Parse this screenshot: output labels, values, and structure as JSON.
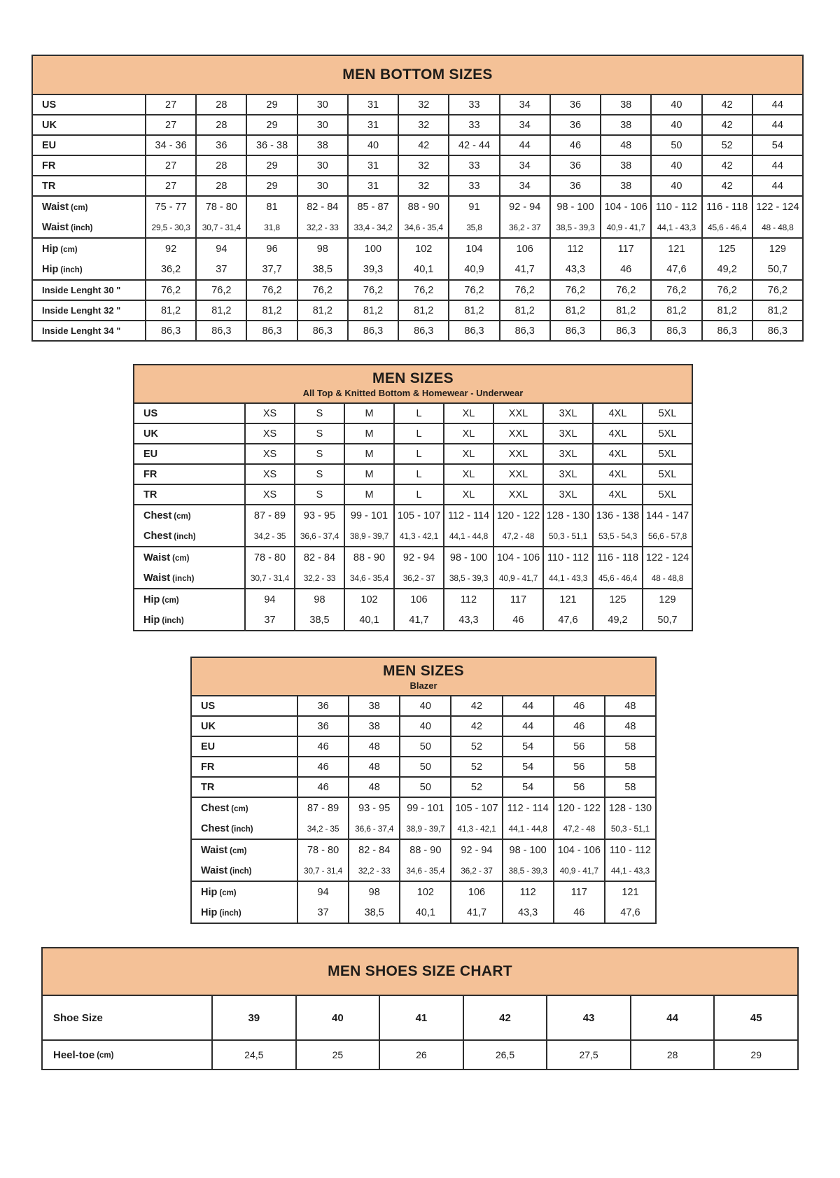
{
  "colors": {
    "header_bg": "#F4C197",
    "border": "#2e2e2e",
    "text": "#1d1d1d",
    "page_bg": "#ffffff"
  },
  "tables": [
    {
      "title": "MEN BOTTOM SIZES",
      "subtitle": "",
      "row_groups": [
        [
          {
            "label": "US",
            "unit": "",
            "small": false,
            "values": [
              "27",
              "28",
              "29",
              "30",
              "31",
              "32",
              "33",
              "34",
              "36",
              "38",
              "40",
              "42",
              "44"
            ]
          }
        ],
        [
          {
            "label": "UK",
            "unit": "",
            "small": false,
            "values": [
              "27",
              "28",
              "29",
              "30",
              "31",
              "32",
              "33",
              "34",
              "36",
              "38",
              "40",
              "42",
              "44"
            ]
          }
        ],
        [
          {
            "label": "EU",
            "unit": "",
            "small": false,
            "values": [
              "34 - 36",
              "36",
              "36 - 38",
              "38",
              "40",
              "42",
              "42 - 44",
              "44",
              "46",
              "48",
              "50",
              "52",
              "54"
            ]
          }
        ],
        [
          {
            "label": "FR",
            "unit": "",
            "small": false,
            "values": [
              "27",
              "28",
              "29",
              "30",
              "31",
              "32",
              "33",
              "34",
              "36",
              "38",
              "40",
              "42",
              "44"
            ]
          }
        ],
        [
          {
            "label": "TR",
            "unit": "",
            "small": false,
            "values": [
              "27",
              "28",
              "29",
              "30",
              "31",
              "32",
              "33",
              "34",
              "36",
              "38",
              "40",
              "42",
              "44"
            ]
          }
        ],
        [
          {
            "label": "Waist",
            "unit": "(cm)",
            "small": false,
            "values": [
              "75 - 77",
              "78 - 80",
              "81",
              "82 - 84",
              "85 - 87",
              "88 - 90",
              "91",
              "92 - 94",
              "98 - 100",
              "104 - 106",
              "110 - 112",
              "116 - 118",
              "122 - 124"
            ]
          },
          {
            "label": "Waist",
            "unit": "(inch)",
            "small": true,
            "values": [
              "29,5 - 30,3",
              "30,7 - 31,4",
              "31,8",
              "32,2 - 33",
              "33,4 - 34,2",
              "34,6 - 35,4",
              "35,8",
              "36,2 - 37",
              "38,5 - 39,3",
              "40,9 - 41,7",
              "44,1 - 43,3",
              "45,6 - 46,4",
              "48 - 48,8"
            ]
          }
        ],
        [
          {
            "label": "Hip",
            "unit": "(cm)",
            "small": false,
            "values": [
              "92",
              "94",
              "96",
              "98",
              "100",
              "102",
              "104",
              "106",
              "112",
              "117",
              "121",
              "125",
              "129"
            ]
          },
          {
            "label": "Hip",
            "unit": "(inch)",
            "small": false,
            "values": [
              "36,2",
              "37",
              "37,7",
              "38,5",
              "39,3",
              "40,1",
              "40,9",
              "41,7",
              "43,3",
              "46",
              "47,6",
              "49,2",
              "50,7"
            ]
          }
        ],
        [
          {
            "label": "Inside Lenght 30 \"",
            "unit": "",
            "small": false,
            "values": [
              "76,2",
              "76,2",
              "76,2",
              "76,2",
              "76,2",
              "76,2",
              "76,2",
              "76,2",
              "76,2",
              "76,2",
              "76,2",
              "76,2",
              "76,2"
            ]
          }
        ],
        [
          {
            "label": "Inside Lenght 32 \"",
            "unit": "",
            "small": false,
            "values": [
              "81,2",
              "81,2",
              "81,2",
              "81,2",
              "81,2",
              "81,2",
              "81,2",
              "81,2",
              "81,2",
              "81,2",
              "81,2",
              "81,2",
              "81,2"
            ]
          }
        ],
        [
          {
            "label": "Inside Lenght 34 \"",
            "unit": "",
            "small": false,
            "values": [
              "86,3",
              "86,3",
              "86,3",
              "86,3",
              "86,3",
              "86,3",
              "86,3",
              "86,3",
              "86,3",
              "86,3",
              "86,3",
              "86,3",
              "86,3"
            ]
          }
        ]
      ]
    },
    {
      "title": "MEN SIZES",
      "subtitle": "All Top & Knitted Bottom & Homewear - Underwear",
      "row_groups": [
        [
          {
            "label": "US",
            "unit": "",
            "small": false,
            "values": [
              "XS",
              "S",
              "M",
              "L",
              "XL",
              "XXL",
              "3XL",
              "4XL",
              "5XL"
            ]
          }
        ],
        [
          {
            "label": "UK",
            "unit": "",
            "small": false,
            "values": [
              "XS",
              "S",
              "M",
              "L",
              "XL",
              "XXL",
              "3XL",
              "4XL",
              "5XL"
            ]
          }
        ],
        [
          {
            "label": "EU",
            "unit": "",
            "small": false,
            "values": [
              "XS",
              "S",
              "M",
              "L",
              "XL",
              "XXL",
              "3XL",
              "4XL",
              "5XL"
            ]
          }
        ],
        [
          {
            "label": "FR",
            "unit": "",
            "small": false,
            "values": [
              "XS",
              "S",
              "M",
              "L",
              "XL",
              "XXL",
              "3XL",
              "4XL",
              "5XL"
            ]
          }
        ],
        [
          {
            "label": "TR",
            "unit": "",
            "small": false,
            "values": [
              "XS",
              "S",
              "M",
              "L",
              "XL",
              "XXL",
              "3XL",
              "4XL",
              "5XL"
            ]
          }
        ],
        [
          {
            "label": "Chest",
            "unit": "(cm)",
            "small": false,
            "values": [
              "87 - 89",
              "93 - 95",
              "99 - 101",
              "105 - 107",
              "112 - 114",
              "120 - 122",
              "128 - 130",
              "136 - 138",
              "144 - 147"
            ]
          },
          {
            "label": "Chest",
            "unit": "(inch)",
            "small": true,
            "values": [
              "34,2 - 35",
              "36,6 - 37,4",
              "38,9 - 39,7",
              "41,3 - 42,1",
              "44,1 - 44,8",
              "47,2 - 48",
              "50,3 - 51,1",
              "53,5 - 54,3",
              "56,6 - 57,8"
            ]
          }
        ],
        [
          {
            "label": "Waist",
            "unit": "(cm)",
            "small": false,
            "values": [
              "78 - 80",
              "82 - 84",
              "88 - 90",
              "92 - 94",
              "98 - 100",
              "104 - 106",
              "110 - 112",
              "116 - 118",
              "122 - 124"
            ]
          },
          {
            "label": "Waist",
            "unit": "(inch)",
            "small": true,
            "values": [
              "30,7 - 31,4",
              "32,2 - 33",
              "34,6 - 35,4",
              "36,2 - 37",
              "38,5 - 39,3",
              "40,9 - 41,7",
              "44,1 - 43,3",
              "45,6 - 46,4",
              "48 - 48,8"
            ]
          }
        ],
        [
          {
            "label": "Hip",
            "unit": "(cm)",
            "small": false,
            "values": [
              "94",
              "98",
              "102",
              "106",
              "112",
              "117",
              "121",
              "125",
              "129"
            ]
          },
          {
            "label": "Hip",
            "unit": "(inch)",
            "small": false,
            "values": [
              "37",
              "38,5",
              "40,1",
              "41,7",
              "43,3",
              "46",
              "47,6",
              "49,2",
              "50,7"
            ]
          }
        ]
      ]
    },
    {
      "title": "MEN SIZES",
      "subtitle": "Blazer",
      "row_groups": [
        [
          {
            "label": "US",
            "unit": "",
            "small": false,
            "values": [
              "36",
              "38",
              "40",
              "42",
              "44",
              "46",
              "48"
            ]
          }
        ],
        [
          {
            "label": "UK",
            "unit": "",
            "small": false,
            "values": [
              "36",
              "38",
              "40",
              "42",
              "44",
              "46",
              "48"
            ]
          }
        ],
        [
          {
            "label": "EU",
            "unit": "",
            "small": false,
            "values": [
              "46",
              "48",
              "50",
              "52",
              "54",
              "56",
              "58"
            ]
          }
        ],
        [
          {
            "label": "FR",
            "unit": "",
            "small": false,
            "values": [
              "46",
              "48",
              "50",
              "52",
              "54",
              "56",
              "58"
            ]
          }
        ],
        [
          {
            "label": "TR",
            "unit": "",
            "small": false,
            "values": [
              "46",
              "48",
              "50",
              "52",
              "54",
              "56",
              "58"
            ]
          }
        ],
        [
          {
            "label": "Chest",
            "unit": "(cm)",
            "small": false,
            "values": [
              "87 - 89",
              "93 - 95",
              "99 - 101",
              "105 - 107",
              "112 - 114",
              "120 - 122",
              "128 - 130"
            ]
          },
          {
            "label": "Chest",
            "unit": "(inch)",
            "small": true,
            "values": [
              "34,2 - 35",
              "36,6 - 37,4",
              "38,9 - 39,7",
              "41,3 - 42,1",
              "44,1 - 44,8",
              "47,2 - 48",
              "50,3 - 51,1"
            ]
          }
        ],
        [
          {
            "label": "Waist",
            "unit": "(cm)",
            "small": false,
            "values": [
              "78 - 80",
              "82 - 84",
              "88 - 90",
              "92 - 94",
              "98 - 100",
              "104 - 106",
              "110 - 112"
            ]
          },
          {
            "label": "Waist",
            "unit": "(inch)",
            "small": true,
            "values": [
              "30,7 - 31,4",
              "32,2 - 33",
              "34,6 - 35,4",
              "36,2 - 37",
              "38,5 - 39,3",
              "40,9 - 41,7",
              "44,1 - 43,3"
            ]
          }
        ],
        [
          {
            "label": "Hip",
            "unit": "(cm)",
            "small": false,
            "values": [
              "94",
              "98",
              "102",
              "106",
              "112",
              "117",
              "121"
            ]
          },
          {
            "label": "Hip",
            "unit": "(inch)",
            "small": false,
            "values": [
              "37",
              "38,5",
              "40,1",
              "41,7",
              "43,3",
              "46",
              "47,6"
            ]
          }
        ]
      ]
    },
    {
      "title": "MEN SHOES SIZE CHART",
      "subtitle": "",
      "row_groups": [
        [
          {
            "label": "Shoe Size",
            "unit": "",
            "small": false,
            "values": [
              "39",
              "40",
              "41",
              "42",
              "43",
              "44",
              "45"
            ]
          }
        ],
        [
          {
            "label": "Heel-toe",
            "unit": "(cm)",
            "small": false,
            "values": [
              "24,5",
              "25",
              "26",
              "26,5",
              "27,5",
              "28",
              "29"
            ]
          }
        ]
      ]
    }
  ]
}
